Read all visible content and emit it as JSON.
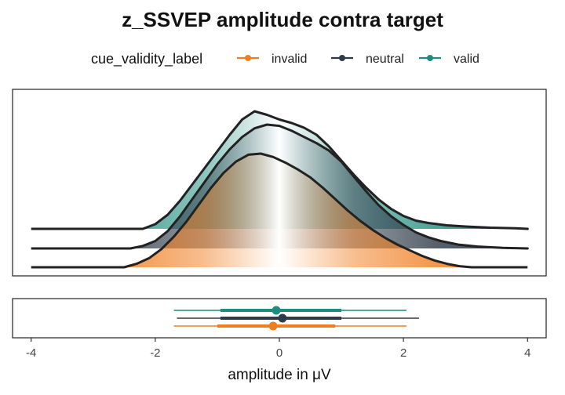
{
  "chart_data": {
    "type": "area",
    "title": "z_SSVEP amplitude contra target",
    "xlabel": "amplitude in μV",
    "ylabel": "",
    "xlim": [
      -4.3,
      4.3
    ],
    "x_ticks": [
      "-4",
      "-2",
      "0",
      "2",
      "4"
    ],
    "x_tick_values": [
      -4,
      -2,
      0,
      2,
      4
    ],
    "grid": false,
    "legend": {
      "title": "cue_validity_label",
      "position": "top",
      "entries": [
        {
          "label": "invalid",
          "color": "#f07e21"
        },
        {
          "label": "neutral",
          "color": "#2e3a48"
        },
        {
          "label": "valid",
          "color": "#1e8c7e"
        }
      ]
    },
    "density_line_range": [
      -4,
      4
    ],
    "series": [
      {
        "name": "valid",
        "color": "#1e8c7e",
        "density_x": [
          -2.2,
          -2.0,
          -1.8,
          -1.6,
          -1.4,
          -1.2,
          -1.0,
          -0.8,
          -0.6,
          -0.4,
          -0.2,
          0.0,
          0.2,
          0.4,
          0.6,
          0.8,
          1.0,
          1.2,
          1.4,
          1.6,
          1.8,
          2.0,
          2.2,
          2.4,
          2.7,
          3.0,
          3.4,
          3.8,
          4.0
        ],
        "density_y": [
          0.0,
          0.04,
          0.12,
          0.24,
          0.38,
          0.52,
          0.66,
          0.8,
          0.93,
          1.0,
          0.97,
          0.93,
          0.9,
          0.86,
          0.8,
          0.7,
          0.58,
          0.46,
          0.35,
          0.25,
          0.17,
          0.11,
          0.07,
          0.05,
          0.03,
          0.02,
          0.01,
          0.005,
          0.0
        ],
        "point": -0.05,
        "interval_66": [
          -0.95,
          1.0
        ],
        "interval_95": [
          -1.7,
          2.05
        ]
      },
      {
        "name": "neutral",
        "color": "#2e3a48",
        "density_x": [
          -2.4,
          -2.2,
          -2.0,
          -1.8,
          -1.6,
          -1.4,
          -1.2,
          -1.0,
          -0.8,
          -0.6,
          -0.4,
          -0.2,
          0.0,
          0.2,
          0.4,
          0.6,
          0.8,
          1.0,
          1.2,
          1.4,
          1.6,
          1.8,
          2.0,
          2.2,
          2.4,
          2.6,
          2.9,
          3.2,
          3.6,
          4.0
        ],
        "density_y": [
          0.0,
          0.02,
          0.06,
          0.14,
          0.26,
          0.4,
          0.54,
          0.68,
          0.8,
          0.9,
          0.97,
          1.0,
          0.99,
          0.95,
          0.9,
          0.85,
          0.79,
          0.7,
          0.58,
          0.46,
          0.35,
          0.26,
          0.19,
          0.13,
          0.09,
          0.06,
          0.03,
          0.015,
          0.005,
          0.0
        ],
        "point": 0.05,
        "interval_66": [
          -0.95,
          1.0
        ],
        "interval_95": [
          -1.65,
          2.25
        ]
      },
      {
        "name": "invalid",
        "color": "#f07e21",
        "density_x": [
          -2.5,
          -2.3,
          -2.1,
          -1.9,
          -1.7,
          -1.5,
          -1.3,
          -1.1,
          -0.9,
          -0.7,
          -0.5,
          -0.3,
          -0.1,
          0.1,
          0.3,
          0.5,
          0.7,
          0.9,
          1.1,
          1.3,
          1.5,
          1.7,
          1.9,
          2.1,
          2.3,
          2.5,
          2.7,
          2.9,
          3.1
        ],
        "density_y": [
          0.0,
          0.03,
          0.08,
          0.16,
          0.27,
          0.4,
          0.55,
          0.7,
          0.83,
          0.93,
          0.99,
          1.0,
          0.97,
          0.92,
          0.86,
          0.79,
          0.7,
          0.6,
          0.5,
          0.41,
          0.33,
          0.26,
          0.2,
          0.15,
          0.1,
          0.06,
          0.03,
          0.01,
          0.0
        ],
        "point": -0.1,
        "interval_66": [
          -1.0,
          0.9
        ],
        "interval_95": [
          -1.7,
          2.05
        ]
      }
    ]
  }
}
